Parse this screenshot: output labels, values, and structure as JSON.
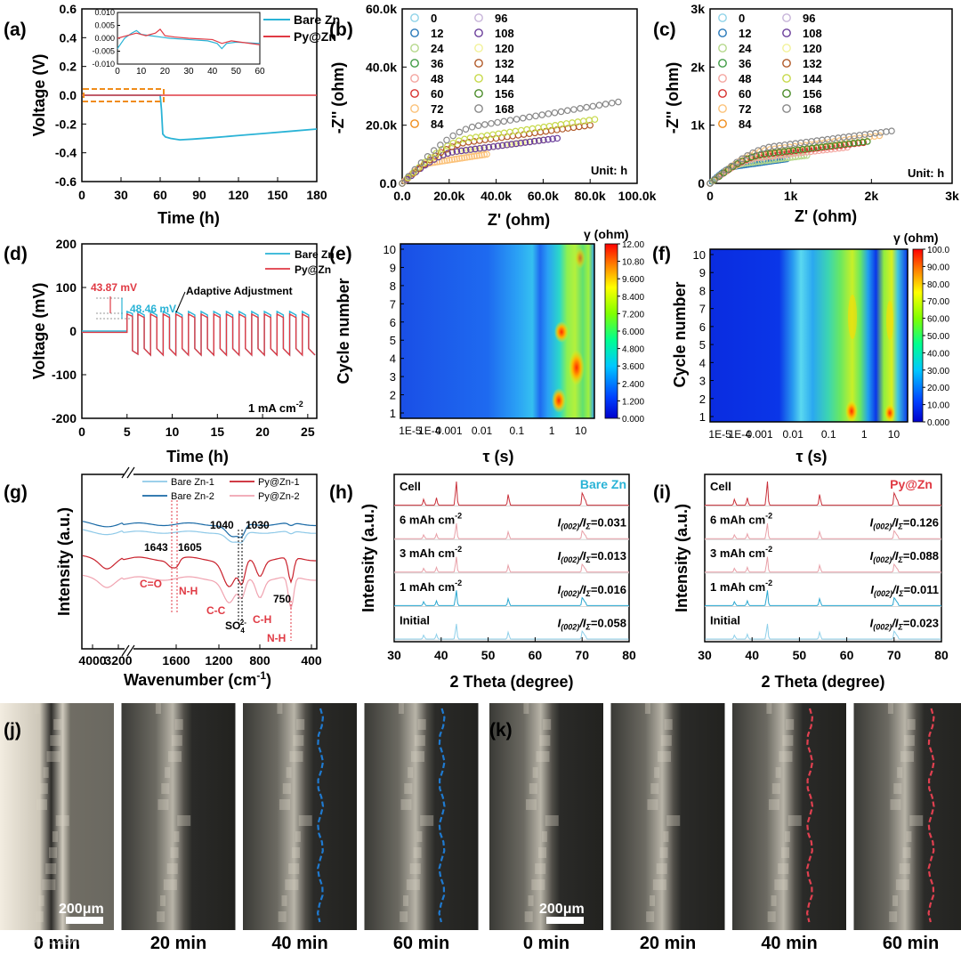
{
  "chart_data": [
    {
      "panel": "a",
      "type": "line",
      "xlabel": "Time (h)",
      "ylabel": "Voltage (V)",
      "xlim": [
        0,
        180
      ],
      "ylim": [
        -0.6,
        0.6
      ],
      "xticks": [
        "0",
        "30",
        "60",
        "90",
        "120",
        "150",
        "180"
      ],
      "yticks": [
        "0.6",
        "0.4",
        "0.2",
        "0.0",
        "-0.2",
        "-0.4",
        "-0.6"
      ],
      "series": [
        {
          "name": "Bare Zn",
          "color": "#2ab3d6",
          "x": [
            0,
            60,
            61,
            62,
            64,
            68,
            75,
            85,
            100,
            120,
            140,
            160,
            180
          ],
          "y": [
            0,
            0,
            -0.1,
            -0.27,
            -0.29,
            -0.3,
            -0.31,
            -0.305,
            -0.295,
            -0.28,
            -0.265,
            -0.25,
            -0.235
          ]
        },
        {
          "name": "Py@Zn",
          "color": "#e03a44",
          "x": [
            0,
            180
          ],
          "y": [
            0.0,
            0.0
          ]
        }
      ],
      "inset": {
        "xlim": [
          0,
          60
        ],
        "ylim": [
          -0.01,
          0.01
        ],
        "xticks": [
          "0",
          "10",
          "20",
          "30",
          "40",
          "50",
          "60"
        ],
        "yticks": [
          "0.010",
          "0.005",
          "0.000",
          "-0.005",
          "-0.010"
        ],
        "series": [
          {
            "name": "Bare Zn",
            "x": [
              0,
              3,
              6,
              8,
              10,
              14,
              18,
              22,
              30,
              38,
              42,
              44,
              46,
              50,
              60
            ],
            "y": [
              -0.004,
              0,
              0.002,
              0.003,
              0.0015,
              0.001,
              0.0005,
              0.0,
              -0.0005,
              -0.001,
              -0.002,
              -0.004,
              -0.002,
              -0.0015,
              -0.002
            ]
          },
          {
            "name": "Py@Zn",
            "x": [
              0,
              4,
              8,
              12,
              16,
              18,
              20,
              24,
              30,
              40,
              44,
              48,
              52,
              60
            ],
            "y": [
              0,
              0.001,
              0.002,
              0.001,
              0.002,
              0.0035,
              0.001,
              0.0005,
              0.0,
              -0.0005,
              -0.002,
              -0.001,
              -0.0015,
              -0.0025
            ]
          }
        ]
      }
    },
    {
      "panel": "b",
      "type": "scatter",
      "xlabel": "Z' (ohm)",
      "ylabel": "-Z'' (ohm)",
      "xlim": [
        0,
        100000
      ],
      "ylim": [
        0,
        60000
      ],
      "xticks": [
        "0.0",
        "20.0k",
        "40.0k",
        "60.0k",
        "80.0k",
        "100.0k"
      ],
      "yticks": [
        "0.0",
        "20.0k",
        "40.0k",
        "60.0k"
      ],
      "annotation": "Unit: h",
      "legend": [
        "0",
        "12",
        "24",
        "36",
        "48",
        "60",
        "72",
        "84",
        "96",
        "108",
        "120",
        "132",
        "144",
        "156",
        "168"
      ],
      "colors": [
        "#8fd3e8",
        "#2677b8",
        "#b5d88b",
        "#3f9b45",
        "#f4a6a0",
        "#d7312e",
        "#fbc27a",
        "#f08c1a",
        "#c7b4d9",
        "#6a3d9a",
        "#f2f29a",
        "#b15928",
        "#c7d94a",
        "#4b8c2a",
        "#888888"
      ],
      "series_visible": [
        {
          "t": 72,
          "color": "#fbc27a",
          "xmax": 36000,
          "ymax": 10000
        },
        {
          "t": 120,
          "color": "#f2f29a",
          "xmax": 60000,
          "ymax": 15000
        },
        {
          "t": 108,
          "color": "#6a3d9a",
          "xmax": 66000,
          "ymax": 15500
        },
        {
          "t": 132,
          "color": "#b15928",
          "xmax": 80000,
          "ymax": 20000
        },
        {
          "t": 156,
          "color": "#c7d94a",
          "xmax": 82000,
          "ymax": 22000
        },
        {
          "t": 168,
          "color": "#888888",
          "xmax": 92000,
          "ymax": 28000
        }
      ]
    },
    {
      "panel": "c",
      "type": "scatter",
      "xlabel": "Z' (ohm)",
      "ylabel": "-Z'' (ohm)",
      "xlim": [
        0,
        3000
      ],
      "ylim": [
        0,
        3000
      ],
      "xticks": [
        "0",
        "1k",
        "2k",
        "3k"
      ],
      "yticks": [
        "0",
        "1k",
        "2k",
        "3k"
      ],
      "annotation": "Unit: h",
      "legend": [
        "0",
        "12",
        "24",
        "36",
        "48",
        "60",
        "72",
        "84",
        "96",
        "108",
        "120",
        "132",
        "144",
        "156",
        "168"
      ],
      "colors": [
        "#8fd3e8",
        "#2677b8",
        "#b5d88b",
        "#3f9b45",
        "#f4a6a0",
        "#d7312e",
        "#fbc27a",
        "#f08c1a",
        "#c7b4d9",
        "#6a3d9a",
        "#f2f29a",
        "#b15928",
        "#c7d94a",
        "#4b8c2a",
        "#888888"
      ],
      "series_visible": [
        {
          "t": 12,
          "color": "#2677b8",
          "xmax": 950,
          "ymax": 420
        },
        {
          "t": 24,
          "color": "#b5d88b",
          "xmax": 1200,
          "ymax": 480
        },
        {
          "t": 48,
          "color": "#f4a6a0",
          "xmax": 1700,
          "ymax": 620
        },
        {
          "t": 60,
          "color": "#d7312e",
          "xmax": 1900,
          "ymax": 700
        },
        {
          "t": 72,
          "color": "#fbc27a",
          "xmax": 2100,
          "ymax": 820
        },
        {
          "t": 144,
          "color": "#4b8c2a",
          "xmax": 1950,
          "ymax": 720
        },
        {
          "t": 168,
          "color": "#888888",
          "xmax": 2250,
          "ymax": 900
        }
      ]
    },
    {
      "panel": "d",
      "type": "line",
      "xlabel": "Time (h)",
      "ylabel": "Voltage (mV)",
      "xlim": [
        0,
        26
      ],
      "ylim": [
        -200,
        200
      ],
      "xticks": [
        "0",
        "5",
        "10",
        "15",
        "20",
        "25"
      ],
      "yticks": [
        "200",
        "100",
        "0",
        "-100",
        "-200"
      ],
      "legend": [
        "Bare Zn",
        "Py@Zn"
      ],
      "colors": [
        "#2ab3d6",
        "#e03a44"
      ],
      "annotations": [
        "43.87 mV",
        "48.46 mV",
        "Adaptive Adjustment",
        "1 mA cm"
      ],
      "annotation_sup": "-2",
      "plateau_mV": 45
    },
    {
      "panel": "e",
      "type": "heatmap",
      "xlabel": "τ (s)",
      "ylabel": "Cycle number",
      "xticks": [
        "1E-5",
        "1E-4",
        "0.001",
        "0.01",
        "0.1",
        "1",
        "10"
      ],
      "yticks": [
        "1",
        "2",
        "3",
        "4",
        "5",
        "6",
        "7",
        "8",
        "9",
        "10"
      ],
      "colorbar_title": "γ (ohm)",
      "colorbar_ticks": [
        "12.00",
        "10.80",
        "9.600",
        "8.400",
        "7.200",
        "6.000",
        "4.800",
        "3.600",
        "2.400",
        "1.200",
        "0.000"
      ]
    },
    {
      "panel": "f",
      "type": "heatmap",
      "xlabel": "τ (s)",
      "ylabel": "Cycle number",
      "xticks": [
        "1E-5",
        "1E-4",
        "0.001",
        "0.01",
        "0.1",
        "1",
        "10"
      ],
      "yticks": [
        "1",
        "2",
        "3",
        "4",
        "5",
        "6",
        "7",
        "8",
        "9",
        "10"
      ],
      "colorbar_title": "γ (ohm)",
      "colorbar_ticks": [
        "100.0",
        "90.00",
        "80.00",
        "70.00",
        "60.00",
        "50.00",
        "40.00",
        "30.00",
        "20.00",
        "10.00",
        "0.000"
      ]
    },
    {
      "panel": "g",
      "type": "line",
      "xlabel": "Wavenumber (cm",
      "xlabel_sup": "-1",
      "xlabel_end": ")",
      "ylabel": "Intensity (a.u.)",
      "xticks": [
        "4000",
        "3200",
        "1600",
        "1200",
        "800",
        "400"
      ],
      "legend": [
        "Bare Zn-1",
        "Bare Zn-2",
        "Py@Zn-1",
        "Py@Zn-2"
      ],
      "colors": [
        "#8ec9e8",
        "#1a6aa6",
        "#c9212c",
        "#f0a3b0"
      ],
      "peaks": [
        "1643",
        "1605",
        "1040",
        "1030",
        "750"
      ],
      "assignments": [
        "C=O",
        "N-H",
        "C-C",
        "SO",
        "C-H",
        "N-H"
      ],
      "so4_sup": "2-",
      "so4_sub": "4"
    },
    {
      "panel": "h",
      "type": "line",
      "xlabel": "2 Theta (degree)",
      "ylabel": "Intensity (a.u.)",
      "xlim": [
        30,
        80
      ],
      "xticks": [
        "30",
        "40",
        "50",
        "60",
        "70",
        "80"
      ],
      "title": "Bare Zn",
      "rows": [
        {
          "label": "Cell",
          "ratio": ""
        },
        {
          "label": "6 mAh cm",
          "ratio": "=0.031"
        },
        {
          "label": "3 mAh cm",
          "ratio": "=0.013"
        },
        {
          "label": "1 mAh cm",
          "ratio": "=0.016"
        },
        {
          "label": "Initial",
          "ratio": "=0.058"
        }
      ],
      "ratio_label": "I(002)/IΣ"
    },
    {
      "panel": "i",
      "type": "line",
      "xlabel": "2 Theta (degree)",
      "ylabel": "Intensity (a.u.)",
      "xlim": [
        30,
        80
      ],
      "xticks": [
        "30",
        "40",
        "50",
        "60",
        "70",
        "80"
      ],
      "title": "Py@Zn",
      "rows": [
        {
          "label": "Cell",
          "ratio": ""
        },
        {
          "label": "6 mAh cm",
          "ratio": "=0.126"
        },
        {
          "label": "3 mAh cm",
          "ratio": "=0.088"
        },
        {
          "label": "1 mAh cm",
          "ratio": "=0.011"
        },
        {
          "label": "Initial",
          "ratio": "=0.023"
        }
      ],
      "ratio_label": "I(002)/IΣ"
    }
  ],
  "panel_labels": [
    "(a)",
    "(b)",
    "(c)",
    "(d)",
    "(e)",
    "(f)",
    "(g)",
    "(h)",
    "(i)",
    "(j)",
    "(k)"
  ],
  "photo_captions": [
    "0 min",
    "20 min",
    "40 min",
    "60 min",
    "0 min",
    "20 min",
    "40 min",
    "60 min"
  ],
  "scale_bar": "200μm",
  "watermark": "1688 石墨烯跨境",
  "legend_a": [
    "Bare Zn",
    "Py@Zn"
  ]
}
